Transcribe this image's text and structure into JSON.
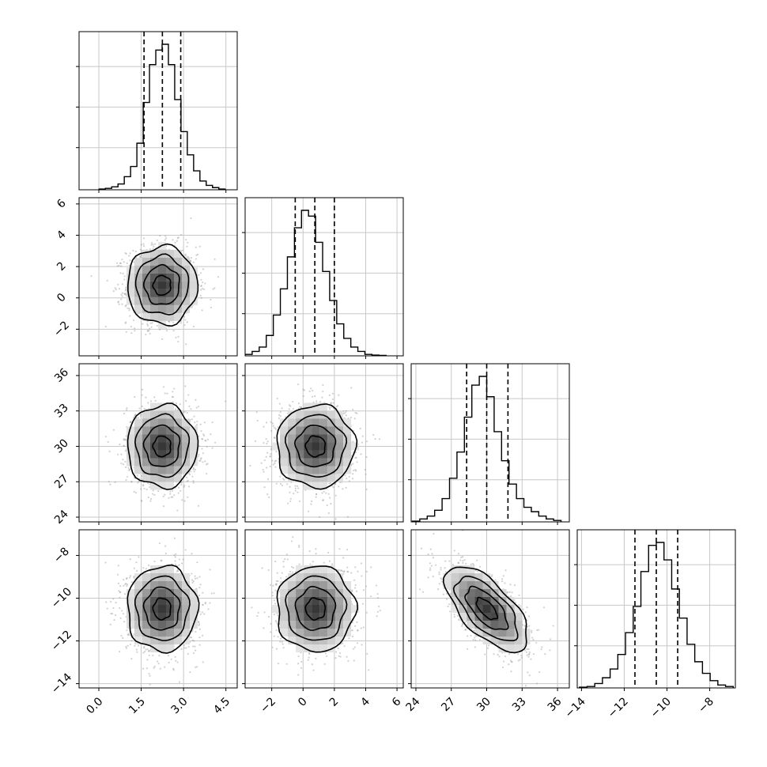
{
  "chart_data": {
    "type": "corner",
    "title": "",
    "parameters": [
      {
        "range": [
          -0.7,
          4.9
        ],
        "ticks": [
          0.0,
          1.5,
          3.0,
          4.5
        ],
        "tick_labels": [
          "0.0",
          "1.5",
          "3.0",
          "4.5"
        ],
        "center": 2.24,
        "sigma": 0.62,
        "quantiles": [
          1.6,
          2.25,
          2.9
        ]
      },
      {
        "range": [
          -3.7,
          6.4
        ],
        "ticks": [
          -2,
          0,
          2,
          4,
          6
        ],
        "tick_labels": [
          "−2",
          "0",
          "2",
          "4",
          "6"
        ],
        "center": 0.8,
        "sigma": 1.25,
        "quantiles": [
          -0.5,
          0.75,
          2.0
        ]
      },
      {
        "range": [
          23.6,
          37.0
        ],
        "ticks": [
          24,
          27,
          30,
          33,
          36
        ],
        "tick_labels": [
          "24",
          "27",
          "30",
          "33",
          "36"
        ],
        "center": 30.0,
        "sigma": 1.75,
        "quantiles": [
          28.3,
          30.0,
          31.8
        ]
      },
      {
        "range": [
          -14.2,
          -6.8
        ],
        "ticks": [
          -14,
          -12,
          -10,
          -8
        ],
        "tick_labels": [
          "−14",
          "−12",
          "−10",
          "−8"
        ],
        "center": -10.5,
        "sigma": 1.0,
        "quantiles": [
          -11.5,
          -10.5,
          -9.5
        ]
      }
    ],
    "correlations": [
      [
        1,
        0,
        0,
        0
      ],
      [
        0,
        1,
        0,
        0
      ],
      [
        0,
        0,
        1,
        -0.65
      ],
      [
        0,
        0,
        -0.65,
        1
      ]
    ],
    "histograms": [
      [
        0.5,
        1,
        2,
        4,
        9,
        16,
        32,
        60,
        86,
        96,
        100,
        86,
        62,
        40,
        24,
        13,
        6,
        3,
        1.5,
        0.5
      ],
      [
        1,
        3,
        6,
        14,
        28,
        46,
        68,
        88,
        100,
        96,
        78,
        58,
        38,
        22,
        12,
        6,
        3,
        1,
        0.5,
        0.3
      ],
      [
        0.5,
        2,
        4,
        8,
        16,
        30,
        48,
        72,
        94,
        100,
        86,
        62,
        42,
        26,
        16,
        10,
        7,
        4,
        2,
        1
      ],
      [
        0.5,
        1,
        3,
        7,
        13,
        23,
        38,
        56,
        80,
        98,
        100,
        88,
        68,
        48,
        30,
        18,
        10,
        5,
        2,
        1
      ]
    ],
    "contour_levels_sigma": [
      0.5,
      1.0,
      1.5,
      2.0
    ],
    "grid": true
  }
}
